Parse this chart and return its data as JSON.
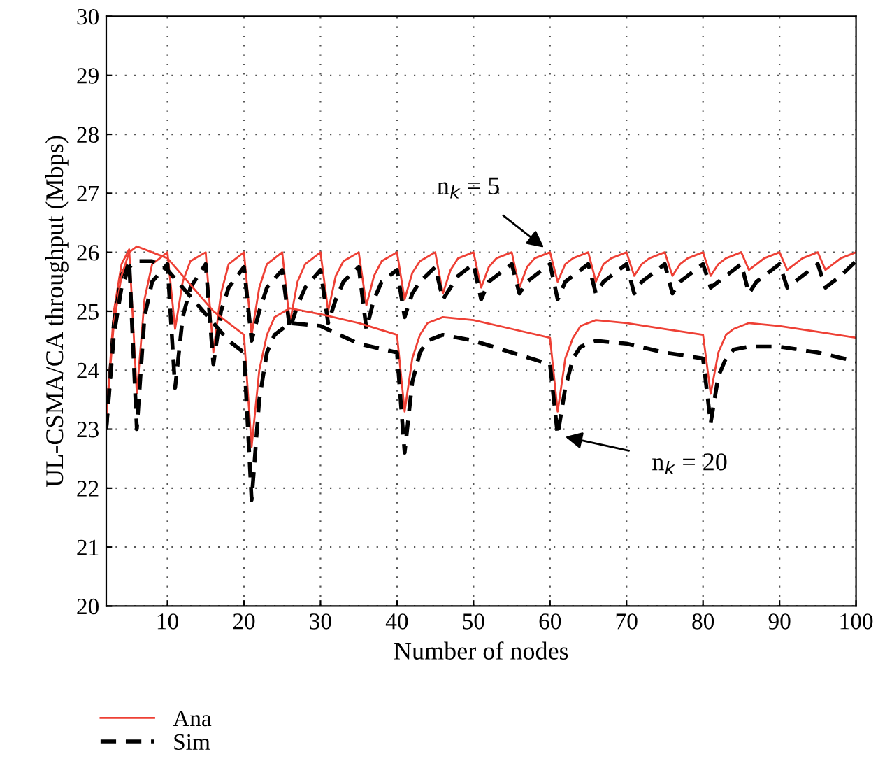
{
  "chart_data": {
    "type": "line",
    "xlabel": "Number of nodes",
    "ylabel": "UL-CSMA/CA throughput (Mbps)",
    "xlim": [
      2,
      100
    ],
    "xticks": [
      10,
      20,
      30,
      40,
      50,
      60,
      70,
      80,
      90,
      100
    ],
    "ylim": [
      20,
      30
    ],
    "yticks": [
      20,
      21,
      22,
      23,
      24,
      25,
      26,
      27,
      28,
      29,
      30
    ],
    "grid": true,
    "legend": "bottom left",
    "marker": "none",
    "series": [
      {
        "name": "Ana",
        "color": "#ee4035",
        "line_style": "solid",
        "x": [
          2,
          3,
          4,
          5,
          6,
          7,
          8,
          10,
          11,
          12,
          13,
          15,
          16,
          17,
          18,
          20,
          21,
          22,
          23,
          25,
          26,
          27,
          28,
          30,
          31,
          32,
          33,
          35,
          36,
          37,
          38,
          40,
          41,
          42,
          43,
          45,
          46,
          47,
          48,
          50,
          51,
          52,
          53,
          55,
          56,
          57,
          58,
          60,
          61,
          62,
          63,
          65,
          66,
          67,
          68,
          70,
          71,
          72,
          73,
          75,
          76,
          77,
          78,
          80,
          81,
          82,
          83,
          85,
          86,
          87,
          88,
          90,
          91,
          92,
          93,
          95,
          96,
          97,
          98,
          100
        ],
        "values": [
          23.2,
          25.0,
          25.8,
          26.05,
          23.6,
          25.2,
          25.8,
          26.0,
          24.7,
          25.5,
          25.85,
          26.0,
          24.3,
          25.3,
          25.8,
          26.0,
          24.6,
          25.4,
          25.8,
          26.0,
          24.8,
          25.5,
          25.8,
          26.0,
          25.0,
          25.6,
          25.85,
          26.0,
          25.1,
          25.6,
          25.85,
          26.0,
          25.2,
          25.65,
          25.85,
          26.0,
          25.3,
          25.7,
          25.9,
          26.0,
          25.4,
          25.75,
          25.9,
          26.0,
          25.4,
          25.75,
          25.9,
          26.0,
          25.5,
          25.8,
          25.9,
          26.0,
          25.5,
          25.8,
          25.9,
          26.0,
          25.6,
          25.8,
          25.9,
          26.0,
          25.6,
          25.8,
          25.9,
          26.0,
          25.6,
          25.8,
          25.9,
          26.0,
          25.7,
          25.8,
          25.9,
          26.0,
          25.7,
          25.8,
          25.9,
          26.0,
          25.7,
          25.8,
          25.9,
          26.0
        ]
      },
      {
        "name": "Sim",
        "color": "#000000",
        "line_style": "dashed",
        "x": [
          2,
          3,
          4,
          5,
          6,
          7,
          8,
          10,
          11,
          12,
          13,
          15,
          16,
          17,
          18,
          20,
          21,
          22,
          23,
          25,
          26,
          27,
          28,
          30,
          31,
          32,
          33,
          35,
          36,
          37,
          38,
          40,
          41,
          42,
          43,
          45,
          46,
          47,
          48,
          50,
          51,
          52,
          53,
          55,
          56,
          57,
          58,
          60,
          61,
          62,
          63,
          65,
          66,
          67,
          68,
          70,
          71,
          72,
          73,
          75,
          76,
          77,
          78,
          80,
          81,
          82,
          83,
          85,
          86,
          87,
          88,
          90,
          91,
          92,
          93,
          95,
          96,
          97,
          98,
          100
        ],
        "values": [
          23.0,
          24.8,
          25.6,
          25.85,
          23.0,
          24.9,
          25.5,
          25.8,
          23.7,
          24.9,
          25.4,
          25.8,
          24.1,
          25.0,
          25.4,
          25.75,
          24.5,
          25.0,
          25.4,
          25.7,
          24.7,
          25.1,
          25.4,
          25.7,
          24.8,
          25.2,
          25.5,
          25.75,
          24.7,
          25.2,
          25.5,
          25.7,
          24.9,
          25.3,
          25.5,
          25.75,
          25.2,
          25.4,
          25.6,
          25.8,
          25.2,
          25.5,
          25.6,
          25.8,
          25.3,
          25.5,
          25.6,
          25.8,
          25.2,
          25.5,
          25.6,
          25.8,
          25.3,
          25.5,
          25.6,
          25.8,
          25.3,
          25.5,
          25.6,
          25.8,
          25.3,
          25.5,
          25.6,
          25.8,
          25.4,
          25.5,
          25.6,
          25.8,
          25.3,
          25.5,
          25.6,
          25.8,
          25.4,
          25.5,
          25.6,
          25.8,
          25.4,
          25.5,
          25.6,
          25.85
        ]
      },
      {
        "color": "#ee4035",
        "line_style": "solid",
        "x": [
          2,
          3,
          4,
          5,
          6,
          8,
          10,
          12,
          14,
          16,
          18,
          20,
          21,
          22,
          23,
          24,
          26,
          30,
          35,
          40,
          41,
          42,
          43,
          44,
          46,
          50,
          55,
          60,
          61,
          62,
          63,
          64,
          66,
          70,
          75,
          80,
          81,
          82,
          83,
          84,
          86,
          90,
          95,
          100
        ],
        "values": [
          23.2,
          24.8,
          25.6,
          26.0,
          26.1,
          26.0,
          25.9,
          25.6,
          25.3,
          25.0,
          24.8,
          24.6,
          22.7,
          24.0,
          24.6,
          24.9,
          25.05,
          24.95,
          24.8,
          24.6,
          23.3,
          24.2,
          24.6,
          24.8,
          24.9,
          24.85,
          24.7,
          24.55,
          23.3,
          24.2,
          24.55,
          24.75,
          24.85,
          24.8,
          24.7,
          24.6,
          23.6,
          24.3,
          24.6,
          24.7,
          24.8,
          24.75,
          24.65,
          24.55
        ]
      },
      {
        "color": "#000000",
        "line_style": "dashed",
        "x": [
          2,
          3,
          4,
          5,
          6,
          8,
          10,
          12,
          14,
          16,
          18,
          20,
          21,
          22,
          23,
          24,
          26,
          30,
          35,
          40,
          41,
          42,
          43,
          44,
          46,
          50,
          55,
          60,
          61,
          62,
          63,
          64,
          66,
          70,
          75,
          80,
          81,
          82,
          83,
          84,
          86,
          90,
          95,
          100
        ],
        "values": [
          23.0,
          24.6,
          25.4,
          25.75,
          25.85,
          25.85,
          25.7,
          25.4,
          25.1,
          24.8,
          24.5,
          24.3,
          21.8,
          23.5,
          24.3,
          24.6,
          24.8,
          24.75,
          24.45,
          24.3,
          22.6,
          23.8,
          24.3,
          24.5,
          24.6,
          24.5,
          24.3,
          24.1,
          22.9,
          23.7,
          24.2,
          24.4,
          24.5,
          24.45,
          24.3,
          24.2,
          23.1,
          23.9,
          24.2,
          24.35,
          24.4,
          24.4,
          24.3,
          24.15
        ]
      }
    ],
    "annotations": [
      {
        "text": "n$_{k}$ = 5",
        "x": 60,
        "y": 26.0
      },
      {
        "text": "n$_{k}$ = 20",
        "x": 61,
        "y": 22.9
      }
    ]
  }
}
